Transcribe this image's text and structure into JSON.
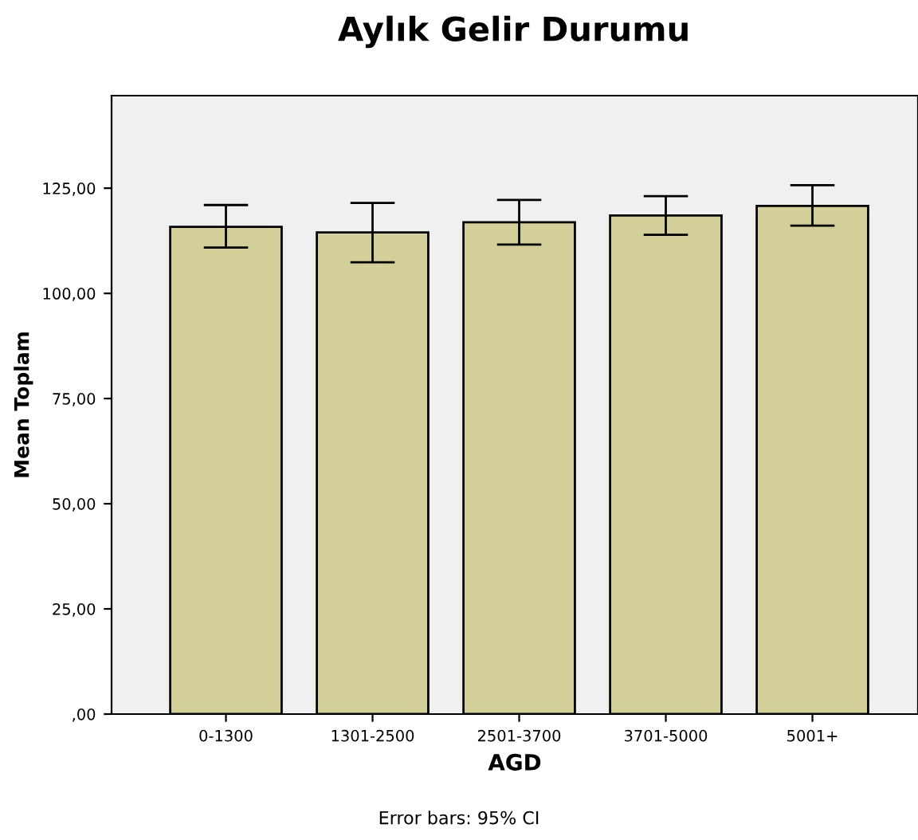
{
  "chart_data": {
    "type": "bar",
    "title": "Aylık Gelir Durumu",
    "xlabel": "AGD",
    "ylabel": "Mean Toplam",
    "categories": [
      "0-1300",
      "1301-2500",
      "2501-3700",
      "3701-5000",
      "5001+"
    ],
    "values": [
      115.8,
      114.5,
      116.9,
      118.5,
      120.8
    ],
    "errors": [
      [
        110.9,
        121.0
      ],
      [
        107.4,
        121.5
      ],
      [
        111.6,
        122.2
      ],
      [
        113.9,
        123.1
      ],
      [
        116.1,
        125.7
      ]
    ],
    "color": "#d3cf98",
    "ylim": [
      0,
      147
    ],
    "yticks": [
      {
        "value": 0,
        "label": ",00"
      },
      {
        "value": 25,
        "label": "25,00"
      },
      {
        "value": 50,
        "label": "50,00"
      },
      {
        "value": 75,
        "label": "75,00"
      },
      {
        "value": 100,
        "label": "100,00"
      },
      {
        "value": 125,
        "label": "125,00"
      }
    ],
    "annotations": [
      "Error bars: 95% CI"
    ],
    "grid": false,
    "legend": false
  }
}
